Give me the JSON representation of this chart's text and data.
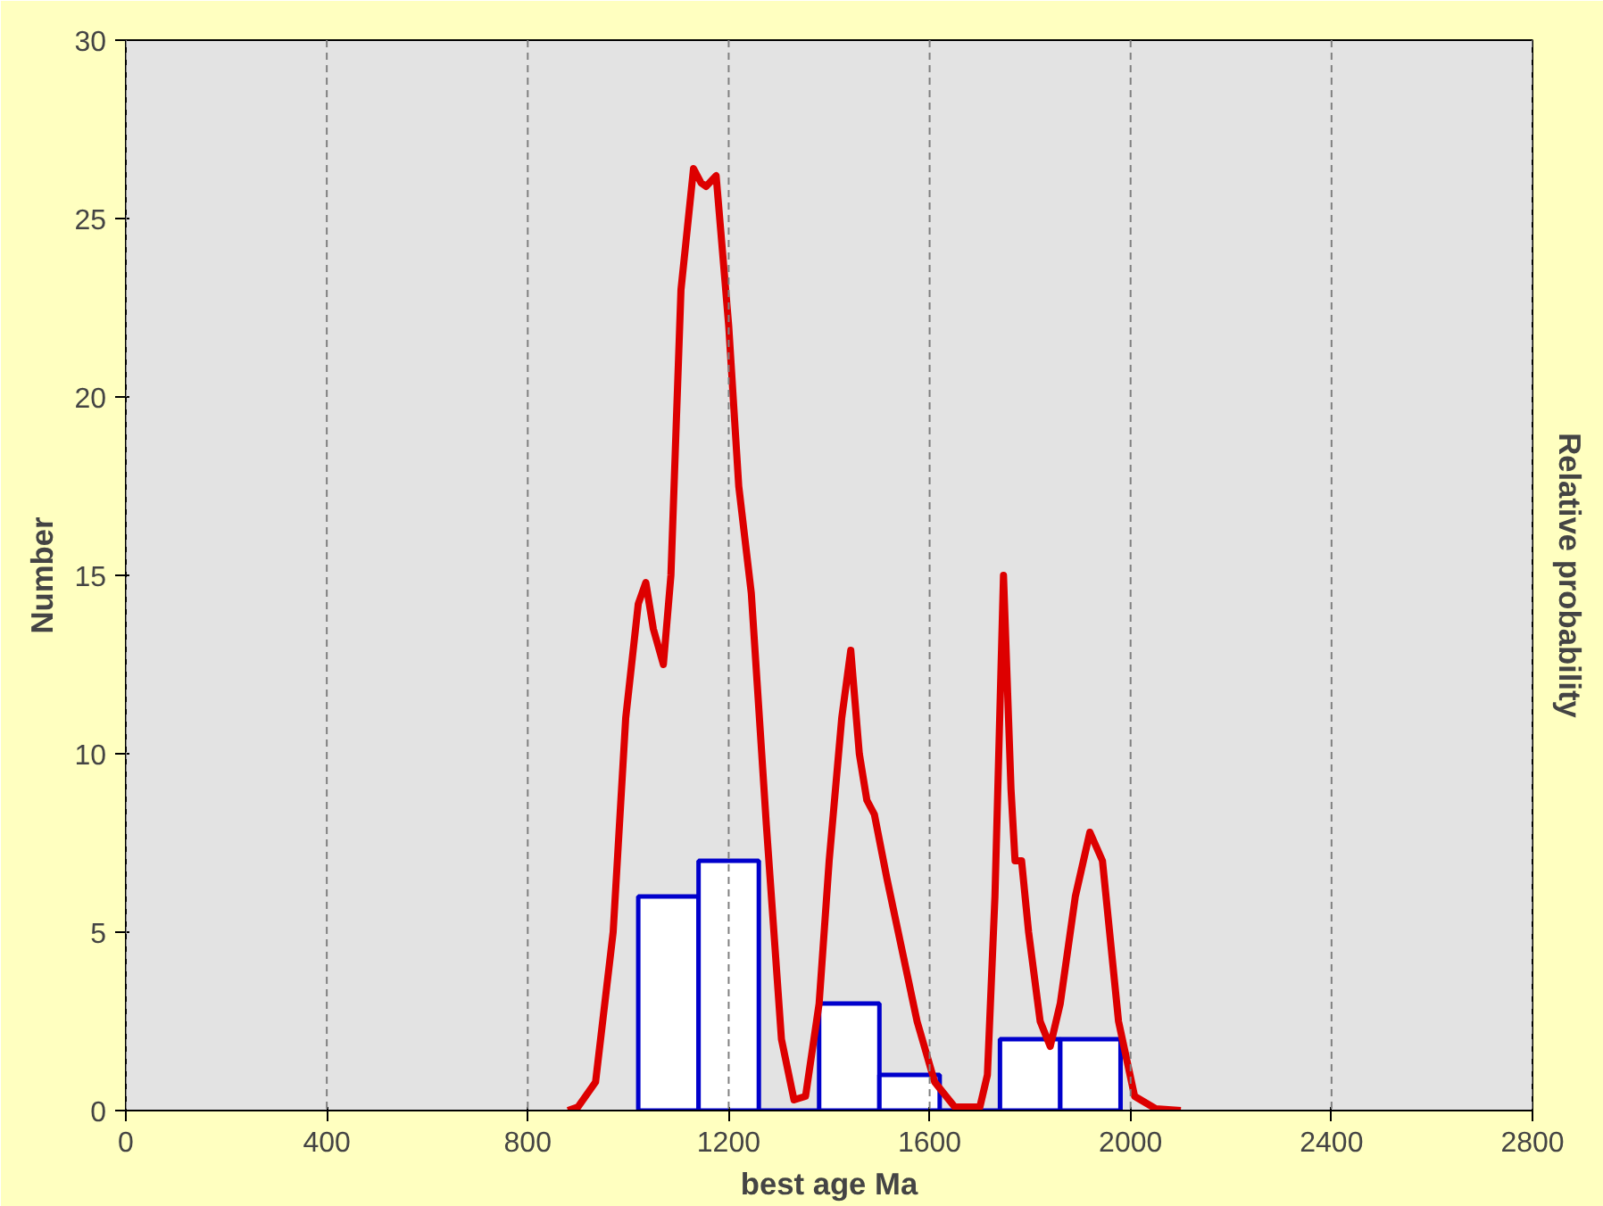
{
  "chart_data": {
    "type": "histogram",
    "xlabel": "best age Ma",
    "ylabel": "Number",
    "y2label": "Relative probability",
    "bins": [
      1020,
      1140,
      1260,
      1380,
      1500,
      1620,
      1740,
      1860,
      1980
    ],
    "values": [
      6,
      7,
      0,
      3,
      1,
      0,
      2,
      2
    ],
    "color": "#0000cc",
    "series": [
      {
        "type": "line",
        "color": "#dd0000",
        "x": [
          880,
          900,
          935,
          970,
          995,
          1020,
          1035,
          1050,
          1070,
          1085,
          1105,
          1130,
          1145,
          1155,
          1175,
          1200,
          1220,
          1245,
          1275,
          1305,
          1330,
          1353,
          1380,
          1400,
          1425,
          1443,
          1460,
          1475,
          1490,
          1515,
          1545,
          1575,
          1610,
          1650,
          1700,
          1715,
          1730,
          1747,
          1762,
          1770,
          1783,
          1797,
          1820,
          1840,
          1860,
          1890,
          1919,
          1944,
          1976,
          2008,
          2050,
          2100
        ],
        "values": [
          0,
          0.1,
          0.8,
          5,
          11,
          14.2,
          14.8,
          13.5,
          12.5,
          15,
          23,
          26.4,
          26.0,
          25.9,
          26.2,
          22,
          17.5,
          14.5,
          8,
          2,
          0.3,
          0.4,
          3,
          7,
          11,
          12.9,
          10,
          8.7,
          8.3,
          6.5,
          4.5,
          2.5,
          0.8,
          0.1,
          0.1,
          1,
          6,
          15,
          9,
          7,
          7,
          5,
          2.5,
          1.8,
          3,
          6,
          7.8,
          7,
          2.5,
          0.4,
          0.05,
          0
        ]
      }
    ],
    "xlim": [
      0,
      2800
    ],
    "xticks": [
      0,
      400,
      800,
      1200,
      1600,
      2000,
      2400,
      2800
    ],
    "ylim": [
      0,
      30
    ],
    "yticks": [
      0,
      5,
      10,
      15,
      20,
      25,
      30
    ],
    "grid": "x"
  }
}
